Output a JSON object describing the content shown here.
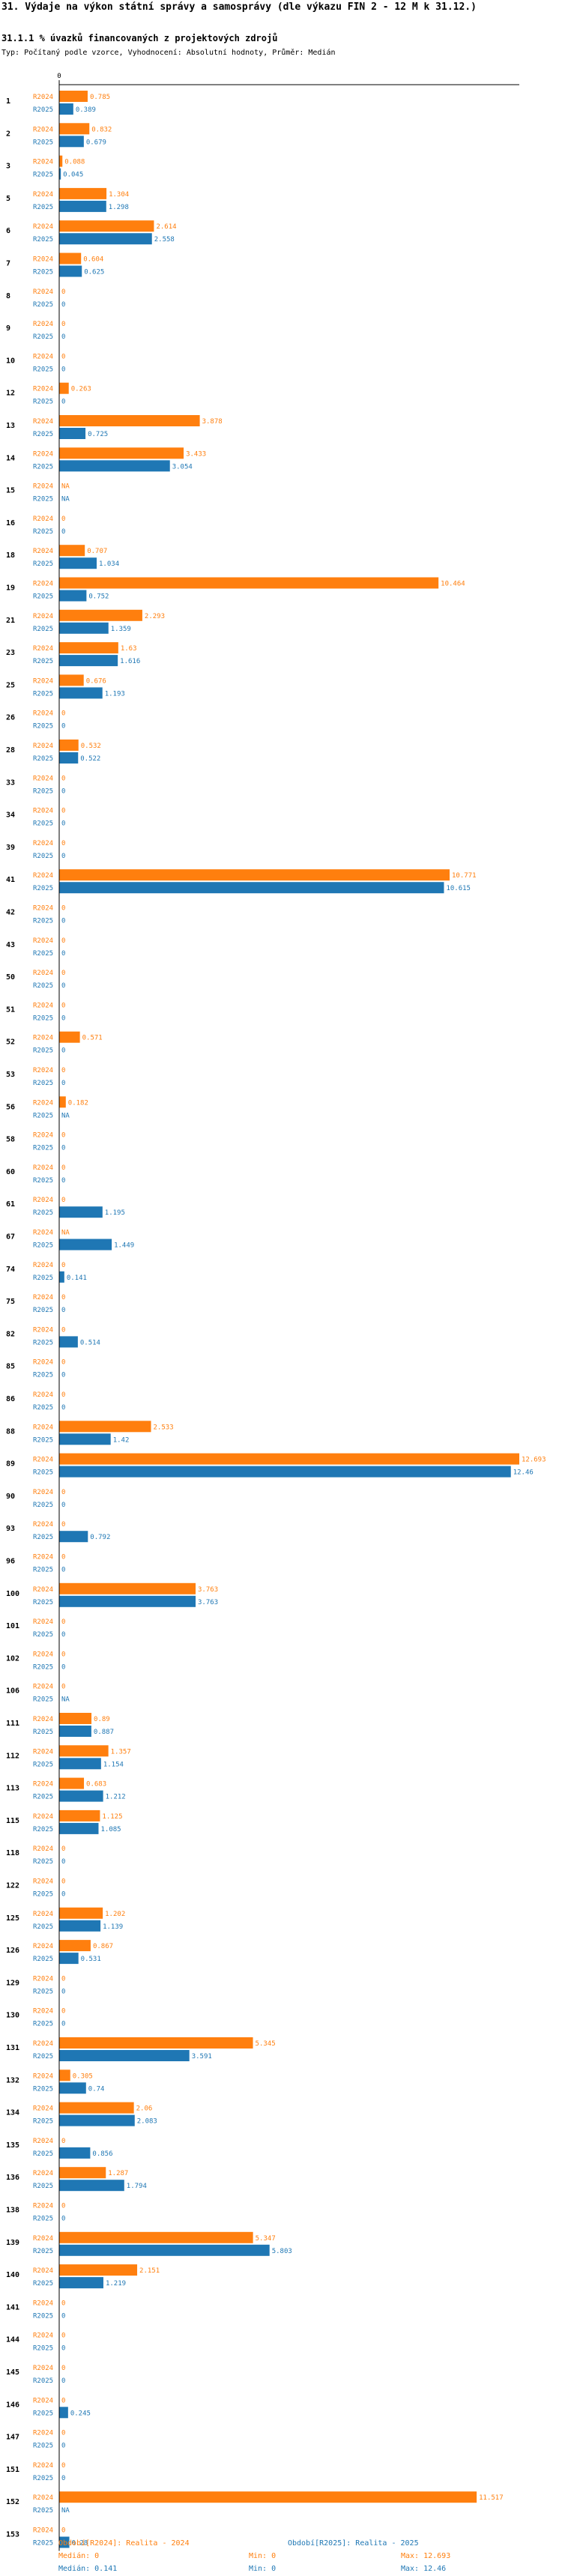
{
  "header": {
    "title": "31. Výdaje na výkon státní správy a samosprávy (dle výkazu FIN 2 - 12 M k 31.12.)",
    "subtitle": "31.1.1 % úvazků financovaných z projektových zdrojů",
    "description": "Typ: Počítaný podle vzorce, Vyhodnocení: Absolutní hodnoty, Průměr: Medián"
  },
  "colors": {
    "r2024": "#ff7f0e",
    "r2025": "#1f77b4",
    "axis": "#000000"
  },
  "chart_data": {
    "type": "bar",
    "orientation": "horizontal",
    "xlim": [
      0,
      12.693
    ],
    "x_ticks": [
      "0"
    ],
    "series": [
      {
        "name": "R2024",
        "label": "Období[R2024]: Realita - 2024"
      },
      {
        "name": "R2025",
        "label": "Období[R2025]: Realita - 2025"
      }
    ],
    "rows": [
      {
        "id": "1",
        "r2024": 0.785,
        "l2024": "0.785",
        "r2025": 0.389,
        "l2025": "0.389"
      },
      {
        "id": "2",
        "r2024": 0.832,
        "l2024": "0.832",
        "r2025": 0.679,
        "l2025": "0.679"
      },
      {
        "id": "3",
        "r2024": 0.088,
        "l2024": "0.088",
        "r2025": 0.045,
        "l2025": "0.045"
      },
      {
        "id": "5",
        "r2024": 1.304,
        "l2024": "1.304",
        "r2025": 1.298,
        "l2025": "1.298"
      },
      {
        "id": "6",
        "r2024": 2.614,
        "l2024": "2.614",
        "r2025": 2.558,
        "l2025": "2.558"
      },
      {
        "id": "7",
        "r2024": 0.604,
        "l2024": "0.604",
        "r2025": 0.625,
        "l2025": "0.625"
      },
      {
        "id": "8",
        "r2024": 0,
        "l2024": "0",
        "r2025": 0,
        "l2025": "0"
      },
      {
        "id": "9",
        "r2024": 0,
        "l2024": "0",
        "r2025": 0,
        "l2025": "0"
      },
      {
        "id": "10",
        "r2024": 0,
        "l2024": "0",
        "r2025": 0,
        "l2025": "0"
      },
      {
        "id": "12",
        "r2024": 0.263,
        "l2024": "0.263",
        "r2025": 0,
        "l2025": "0"
      },
      {
        "id": "13",
        "r2024": 3.878,
        "l2024": "3.878",
        "r2025": 0.725,
        "l2025": "0.725"
      },
      {
        "id": "14",
        "r2024": 3.433,
        "l2024": "3.433",
        "r2025": 3.054,
        "l2025": "3.054"
      },
      {
        "id": "15",
        "r2024": null,
        "l2024": "NA",
        "r2025": null,
        "l2025": "NA"
      },
      {
        "id": "16",
        "r2024": 0,
        "l2024": "0",
        "r2025": 0,
        "l2025": "0"
      },
      {
        "id": "18",
        "r2024": 0.707,
        "l2024": "0.707",
        "r2025": 1.034,
        "l2025": "1.034"
      },
      {
        "id": "19",
        "r2024": 10.464,
        "l2024": "10.464",
        "r2025": 0.752,
        "l2025": "0.752"
      },
      {
        "id": "21",
        "r2024": 2.293,
        "l2024": "2.293",
        "r2025": 1.359,
        "l2025": "1.359"
      },
      {
        "id": "23",
        "r2024": 1.63,
        "l2024": "1.63",
        "r2025": 1.616,
        "l2025": "1.616"
      },
      {
        "id": "25",
        "r2024": 0.676,
        "l2024": "0.676",
        "r2025": 1.193,
        "l2025": "1.193"
      },
      {
        "id": "26",
        "r2024": 0,
        "l2024": "0",
        "r2025": 0,
        "l2025": "0"
      },
      {
        "id": "28",
        "r2024": 0.532,
        "l2024": "0.532",
        "r2025": 0.522,
        "l2025": "0.522"
      },
      {
        "id": "33",
        "r2024": 0,
        "l2024": "0",
        "r2025": 0,
        "l2025": "0"
      },
      {
        "id": "34",
        "r2024": 0,
        "l2024": "0",
        "r2025": 0,
        "l2025": "0"
      },
      {
        "id": "39",
        "r2024": 0,
        "l2024": "0",
        "r2025": 0,
        "l2025": "0"
      },
      {
        "id": "41",
        "r2024": 10.771,
        "l2024": "10.771",
        "r2025": 10.615,
        "l2025": "10.615"
      },
      {
        "id": "42",
        "r2024": 0,
        "l2024": "0",
        "r2025": 0,
        "l2025": "0"
      },
      {
        "id": "43",
        "r2024": 0,
        "l2024": "0",
        "r2025": 0,
        "l2025": "0"
      },
      {
        "id": "50",
        "r2024": 0,
        "l2024": "0",
        "r2025": 0,
        "l2025": "0"
      },
      {
        "id": "51",
        "r2024": 0,
        "l2024": "0",
        "r2025": 0,
        "l2025": "0"
      },
      {
        "id": "52",
        "r2024": 0.571,
        "l2024": "0.571",
        "r2025": 0,
        "l2025": "0"
      },
      {
        "id": "53",
        "r2024": 0,
        "l2024": "0",
        "r2025": 0,
        "l2025": "0"
      },
      {
        "id": "56",
        "r2024": 0.182,
        "l2024": "0.182",
        "r2025": null,
        "l2025": "NA"
      },
      {
        "id": "58",
        "r2024": 0,
        "l2024": "0",
        "r2025": 0,
        "l2025": "0"
      },
      {
        "id": "60",
        "r2024": 0,
        "l2024": "0",
        "r2025": 0,
        "l2025": "0"
      },
      {
        "id": "61",
        "r2024": 0,
        "l2024": "0",
        "r2025": 1.195,
        "l2025": "1.195"
      },
      {
        "id": "67",
        "r2024": null,
        "l2024": "NA",
        "r2025": 1.449,
        "l2025": "1.449"
      },
      {
        "id": "74",
        "r2024": 0,
        "l2024": "0",
        "r2025": 0.141,
        "l2025": "0.141"
      },
      {
        "id": "75",
        "r2024": 0,
        "l2024": "0",
        "r2025": 0,
        "l2025": "0"
      },
      {
        "id": "82",
        "r2024": 0,
        "l2024": "0",
        "r2025": 0.514,
        "l2025": "0.514"
      },
      {
        "id": "85",
        "r2024": 0,
        "l2024": "0",
        "r2025": 0,
        "l2025": "0"
      },
      {
        "id": "86",
        "r2024": 0,
        "l2024": "0",
        "r2025": 0,
        "l2025": "0"
      },
      {
        "id": "88",
        "r2024": 2.533,
        "l2024": "2.533",
        "r2025": 1.42,
        "l2025": "1.42"
      },
      {
        "id": "89",
        "r2024": 12.693,
        "l2024": "12.693",
        "r2025": 12.46,
        "l2025": "12.46"
      },
      {
        "id": "90",
        "r2024": 0,
        "l2024": "0",
        "r2025": 0,
        "l2025": "0"
      },
      {
        "id": "93",
        "r2024": 0,
        "l2024": "0",
        "r2025": 0.792,
        "l2025": "0.792"
      },
      {
        "id": "96",
        "r2024": 0,
        "l2024": "0",
        "r2025": 0,
        "l2025": "0"
      },
      {
        "id": "100",
        "r2024": 3.763,
        "l2024": "3.763",
        "r2025": 3.763,
        "l2025": "3.763"
      },
      {
        "id": "101",
        "r2024": 0,
        "l2024": "0",
        "r2025": 0,
        "l2025": "0"
      },
      {
        "id": "102",
        "r2024": 0,
        "l2024": "0",
        "r2025": 0,
        "l2025": "0"
      },
      {
        "id": "106",
        "r2024": 0,
        "l2024": "0",
        "r2025": null,
        "l2025": "NA"
      },
      {
        "id": "111",
        "r2024": 0.89,
        "l2024": "0.89",
        "r2025": 0.887,
        "l2025": "0.887"
      },
      {
        "id": "112",
        "r2024": 1.357,
        "l2024": "1.357",
        "r2025": 1.154,
        "l2025": "1.154"
      },
      {
        "id": "113",
        "r2024": 0.683,
        "l2024": "0.683",
        "r2025": 1.212,
        "l2025": "1.212"
      },
      {
        "id": "115",
        "r2024": 1.125,
        "l2024": "1.125",
        "r2025": 1.085,
        "l2025": "1.085"
      },
      {
        "id": "118",
        "r2024": 0,
        "l2024": "0",
        "r2025": 0,
        "l2025": "0"
      },
      {
        "id": "122",
        "r2024": 0,
        "l2024": "0",
        "r2025": 0,
        "l2025": "0"
      },
      {
        "id": "125",
        "r2024": 1.202,
        "l2024": "1.202",
        "r2025": 1.139,
        "l2025": "1.139"
      },
      {
        "id": "126",
        "r2024": 0.867,
        "l2024": "0.867",
        "r2025": 0.531,
        "l2025": "0.531"
      },
      {
        "id": "129",
        "r2024": 0,
        "l2024": "0",
        "r2025": 0,
        "l2025": "0"
      },
      {
        "id": "130",
        "r2024": 0,
        "l2024": "0",
        "r2025": 0,
        "l2025": "0"
      },
      {
        "id": "131",
        "r2024": 5.345,
        "l2024": "5.345",
        "r2025": 3.591,
        "l2025": "3.591"
      },
      {
        "id": "132",
        "r2024": 0.305,
        "l2024": "0.305",
        "r2025": 0.74,
        "l2025": "0.74"
      },
      {
        "id": "134",
        "r2024": 2.06,
        "l2024": "2.06",
        "r2025": 2.083,
        "l2025": "2.083"
      },
      {
        "id": "135",
        "r2024": 0,
        "l2024": "0",
        "r2025": 0.856,
        "l2025": "0.856"
      },
      {
        "id": "136",
        "r2024": 1.287,
        "l2024": "1.287",
        "r2025": 1.794,
        "l2025": "1.794"
      },
      {
        "id": "138",
        "r2024": 0,
        "l2024": "0",
        "r2025": 0,
        "l2025": "0"
      },
      {
        "id": "139",
        "r2024": 5.347,
        "l2024": "5.347",
        "r2025": 5.803,
        "l2025": "5.803"
      },
      {
        "id": "140",
        "r2024": 2.151,
        "l2024": "2.151",
        "r2025": 1.219,
        "l2025": "1.219"
      },
      {
        "id": "141",
        "r2024": 0,
        "l2024": "0",
        "r2025": 0,
        "l2025": "0"
      },
      {
        "id": "144",
        "r2024": 0,
        "l2024": "0",
        "r2025": 0,
        "l2025": "0"
      },
      {
        "id": "145",
        "r2024": 0,
        "l2024": "0",
        "r2025": 0,
        "l2025": "0"
      },
      {
        "id": "146",
        "r2024": 0,
        "l2024": "0",
        "r2025": 0.245,
        "l2025": "0.245"
      },
      {
        "id": "147",
        "r2024": 0,
        "l2024": "0",
        "r2025": 0,
        "l2025": "0"
      },
      {
        "id": "151",
        "r2024": 0,
        "l2024": "0",
        "r2025": 0,
        "l2025": "0"
      },
      {
        "id": "152",
        "r2024": 11.517,
        "l2024": "11.517",
        "r2025": null,
        "l2025": "NA"
      },
      {
        "id": "153",
        "r2024": 0,
        "l2024": "0",
        "r2025": 0.28,
        "l2025": "0.28"
      }
    ]
  },
  "legend": {
    "r2024": {
      "label": "Období[R2024]: Realita - 2024",
      "median": "Medián: 0",
      "min": "Min: 0",
      "max": "Max: 12.693"
    },
    "r2025": {
      "label": "Období[R2025]: Realita - 2025",
      "median": "Medián: 0.141",
      "min": "Min: 0",
      "max": "Max: 12.46"
    }
  }
}
